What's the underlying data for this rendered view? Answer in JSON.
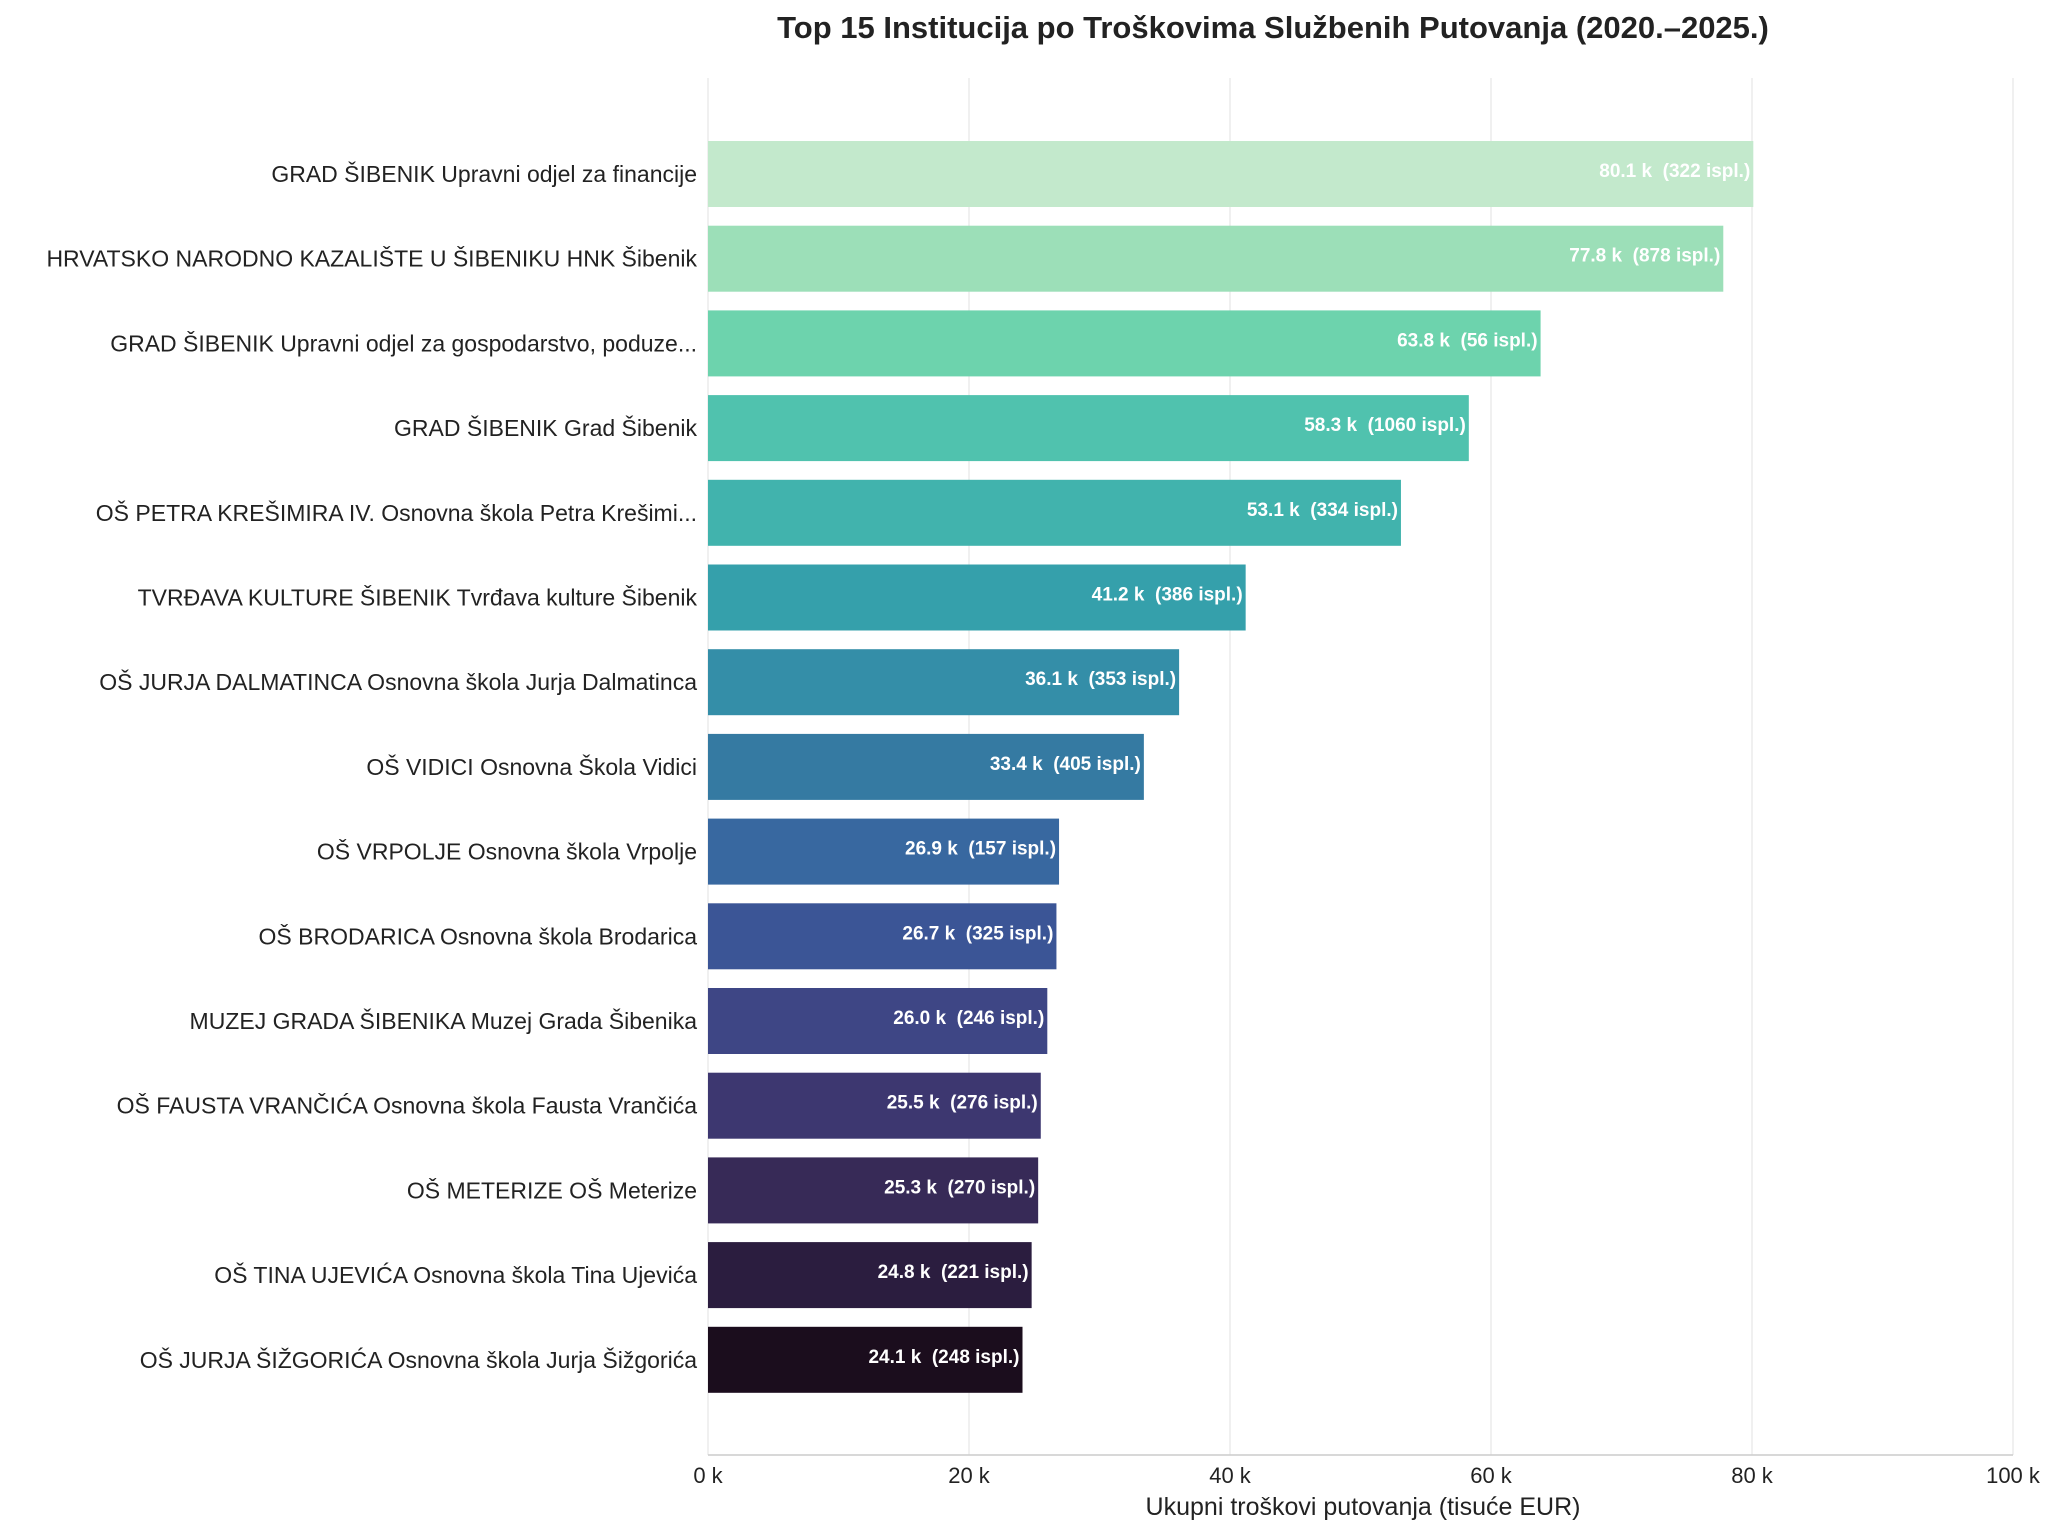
{
  "chart_data": {
    "type": "bar",
    "orientation": "horizontal",
    "title": "Top 15 Institucija po Troškovima Službenih Putovanja (2020.–2025.)",
    "xlabel": "Ukupni troškovi putovanja (tisuće EUR)",
    "ylabel": "",
    "xlim": [
      0,
      100
    ],
    "xticks": [
      0,
      20,
      40,
      60,
      80,
      100
    ],
    "xtick_labels": [
      "0 k",
      "20 k",
      "40 k",
      "60 k",
      "80 k",
      "100 k"
    ],
    "grid": "vertical",
    "legend": "none",
    "categories": [
      "GRAD ŠIBENIK Upravni odjel za financije",
      "HRVATSKO NARODNO KAZALIŠTE U ŠIBENIKU HNK Šibenik",
      "GRAD ŠIBENIK Upravni odjel za gospodarstvo, poduze...",
      "GRAD ŠIBENIK Grad Šibenik",
      "OŠ PETRA KREŠIMIRA IV. Osnovna škola Petra Krešimi...",
      "TVRĐAVA KULTURE ŠIBENIK Tvrđava kulture Šibenik",
      "OŠ JURJA DALMATINCA Osnovna škola Jurja Dalmatinca",
      "OŠ VIDICI Osnovna Škola Vidici",
      "OŠ VRPOLJE Osnovna škola Vrpolje",
      "OŠ BRODARICA Osnovna škola Brodarica",
      "MUZEJ GRADA ŠIBENIKA Muzej Grada Šibenika",
      "OŠ FAUSTA VRANČIĆA Osnovna škola Fausta Vrančića",
      "OŠ METERIZE OŠ Meterize",
      "OŠ TINA UJEVIĆA Osnovna škola Tina Ujevića",
      "OŠ JURJA ŠIŽGORIĆA Osnovna škola Jurja Šižgorića"
    ],
    "values": [
      80.1,
      77.8,
      63.8,
      58.3,
      53.1,
      41.2,
      36.1,
      33.4,
      26.9,
      26.7,
      26.0,
      25.5,
      25.3,
      24.8,
      24.1
    ],
    "value_labels": [
      "80.1 k  (322 ispl.)",
      "77.8 k  (878 ispl.)",
      "63.8 k  (56 ispl.)",
      "58.3 k  (1060 ispl.)",
      "53.1 k  (334 ispl.)",
      "41.2 k  (386 ispl.)",
      "36.1 k  (353 ispl.)",
      "33.4 k  (405 ispl.)",
      "26.9 k  (157 ispl.)",
      "26.7 k  (325 ispl.)",
      "26.0 k  (246 ispl.)",
      "25.5 k  (276 ispl.)",
      "25.3 k  (270 ispl.)",
      "24.8 k  (221 ispl.)",
      "24.1 k  (248 ispl.)"
    ],
    "colors": [
      "#c3e9cc",
      "#9cdfb8",
      "#6dd3ad",
      "#50c2ae",
      "#41b3ad",
      "#35a0ab",
      "#348ea8",
      "#357aa2",
      "#3868a0",
      "#3b5596",
      "#3e4685",
      "#3d3770",
      "#372a57",
      "#2b1d3f",
      "#1b0d1d"
    ],
    "grid_color": "#ebebeb",
    "axis_color": "#cccccc"
  }
}
